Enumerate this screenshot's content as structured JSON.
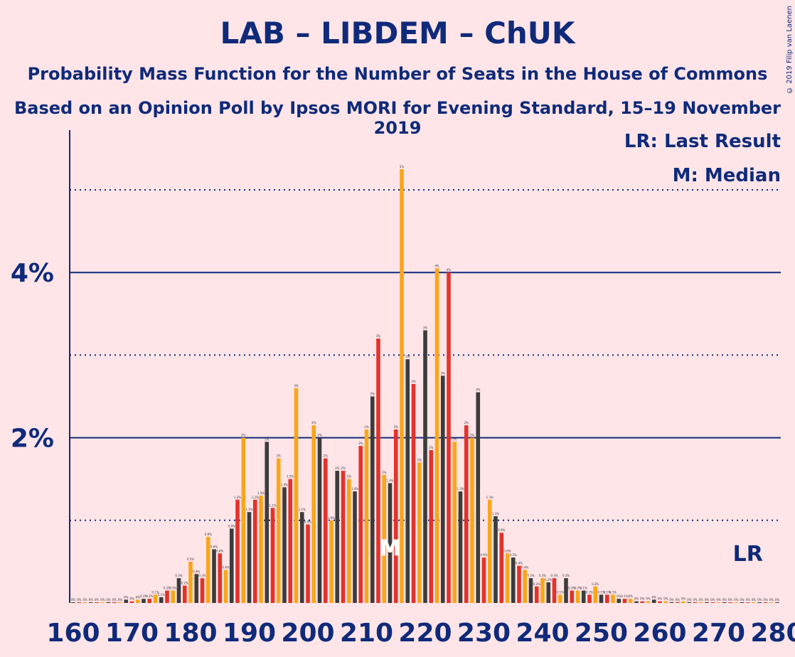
{
  "title": "LAB – LIBDEM – ChUK",
  "subtitle": "Probability Mass Function for the Number of Seats in the House of Commons",
  "subtitle2": "Based on an Opinion Poll by Ipsos MORI for Evening Standard, 15–19 November 2019",
  "copyright": "© 2019 Filip van Laenen",
  "legend": {
    "last_result": "LR: Last Result",
    "median": "M: Median"
  },
  "markers": {
    "median_label": "M",
    "median_seat": 214,
    "last_result_label": "LR",
    "last_result_seat": 275
  },
  "colors": {
    "dark": "#3C3C3C",
    "red": "#E4322A",
    "orange": "#FAA61A",
    "axis": "#0F2A7A",
    "background": "#FFE5E8"
  },
  "chart_data": {
    "type": "bar",
    "xlabel": "",
    "ylabel": "",
    "xlim": [
      160,
      280
    ],
    "ylim": [
      0,
      5.7
    ],
    "y_unit": "%",
    "y_major_ticks": [
      {
        "value": 2,
        "label": "2%"
      },
      {
        "value": 4,
        "label": "4%"
      }
    ],
    "y_minor_ticks": [
      1,
      3,
      5
    ],
    "x_tick_labels": [
      "160",
      "170",
      "180",
      "190",
      "200",
      "210",
      "220",
      "230",
      "240",
      "250",
      "260",
      "270",
      "280"
    ],
    "x": [
      160,
      161,
      162,
      163,
      164,
      165,
      166,
      167,
      168,
      169,
      170,
      171,
      172,
      173,
      174,
      175,
      176,
      177,
      178,
      179,
      180,
      181,
      182,
      183,
      184,
      185,
      186,
      187,
      188,
      189,
      190,
      191,
      192,
      193,
      194,
      195,
      196,
      197,
      198,
      199,
      200,
      201,
      202,
      203,
      204,
      205,
      206,
      207,
      208,
      209,
      210,
      211,
      212,
      213,
      214,
      215,
      216,
      217,
      218,
      219,
      220,
      221,
      222,
      223,
      224,
      225,
      226,
      227,
      228,
      229,
      230,
      231,
      232,
      233,
      234,
      235,
      236,
      237,
      238,
      239,
      240,
      241,
      242,
      243,
      244,
      245,
      246,
      247,
      248,
      249,
      250,
      251,
      252,
      253,
      254,
      255,
      256,
      257,
      258,
      259,
      260,
      261,
      262,
      263,
      264,
      265,
      266,
      267,
      268,
      269,
      270,
      271,
      272,
      273,
      274,
      275,
      276,
      277,
      278,
      279,
      280
    ],
    "values": [
      0.005,
      0.005,
      0.005,
      0.005,
      0.005,
      0.005,
      0.01,
      0.01,
      0.01,
      0.04,
      0.02,
      0.04,
      0.05,
      0.05,
      0.1,
      0.07,
      0.15,
      0.15,
      0.3,
      0.21,
      0.5,
      0.35,
      0.3,
      0.8,
      0.65,
      0.6,
      0.4,
      0.9,
      1.25,
      2.0,
      1.1,
      1.25,
      1.3,
      1.95,
      1.15,
      1.75,
      1.4,
      1.5,
      2.6,
      1.1,
      0.95,
      2.15,
      2.0,
      1.75,
      1.0,
      1.6,
      1.6,
      1.5,
      1.35,
      1.9,
      2.1,
      2.5,
      3.2,
      1.55,
      1.45,
      2.1,
      5.25,
      2.95,
      2.65,
      1.7,
      3.3,
      1.85,
      4.05,
      2.75,
      4.0,
      1.95,
      1.35,
      2.15,
      2.0,
      2.55,
      0.55,
      1.25,
      1.05,
      0.85,
      0.6,
      0.55,
      0.45,
      0.4,
      0.3,
      0.2,
      0.3,
      0.25,
      0.3,
      0.1,
      0.3,
      0.15,
      0.15,
      0.15,
      0.1,
      0.2,
      0.1,
      0.1,
      0.1,
      0.05,
      0.05,
      0.05,
      0.02,
      0.02,
      0.02,
      0.04,
      0.02,
      0.02,
      0.01,
      0.01,
      0.02,
      0.01,
      0.01,
      0.01,
      0.01,
      0.005,
      0.005,
      0.005,
      0.005,
      0.005,
      0.005,
      0.005,
      0.005,
      0.005,
      0.005,
      0.005,
      0.005
    ],
    "value_labels": [
      "0%",
      "0%",
      "0%",
      "0%",
      "0%",
      "0%",
      "0%",
      "0%",
      "0%",
      "0%",
      "0%",
      "0%",
      "0.1%",
      "0.1%",
      "0.1%",
      "0.1%",
      "0.1%",
      "0.1%",
      "0.3%",
      "0.2%",
      "0.5%",
      "0.4%",
      "0.3%",
      "0.8%",
      "0.6%",
      "0.6%",
      "0.4%",
      "0.9%",
      "1.2%",
      "2%",
      "1.1%",
      "1.2%",
      "1.3%",
      "2%",
      "1.1%",
      "2%",
      "1.4%",
      "1.5%",
      "3%",
      "1.1%",
      "0.9%",
      "2%",
      "2%",
      "2%",
      "1.0%",
      "2%",
      "2%",
      "2%",
      "1.4%",
      "2%",
      "2%",
      "2%",
      "3%",
      "2%",
      "1.4%",
      "2%",
      "5%",
      "3%",
      "3%",
      "2%",
      "3%",
      "2%",
      "4%",
      "3%",
      "4%",
      "2%",
      "1.3%",
      "2%",
      "2%",
      "3%",
      "0.6%",
      "1.3%",
      "1.1%",
      "0.9%",
      "0.6%",
      "0.5%",
      "0.4%",
      "0.4%",
      "0.3%",
      "0.2%",
      "0.3%",
      "0.2%",
      "0.3%",
      "0.1%",
      "0.3%",
      "0.2%",
      "0.2%",
      "0.1%",
      "0.1%",
      "0.2%",
      "0.1%",
      "0.1%",
      "0.1%",
      "0%",
      "0.1%",
      "0%",
      "0%",
      "0%",
      "0%",
      "0%",
      "0%",
      "0%",
      "0%",
      "0%",
      "0%",
      "0%",
      "0%",
      "0%",
      "0%",
      "0%",
      "0%",
      "0%",
      "0%",
      "0%",
      "0%",
      "0%",
      "0%",
      "0%",
      "0%",
      "0%",
      "0%"
    ],
    "color_cycle": [
      "dark",
      "red",
      "orange"
    ]
  }
}
